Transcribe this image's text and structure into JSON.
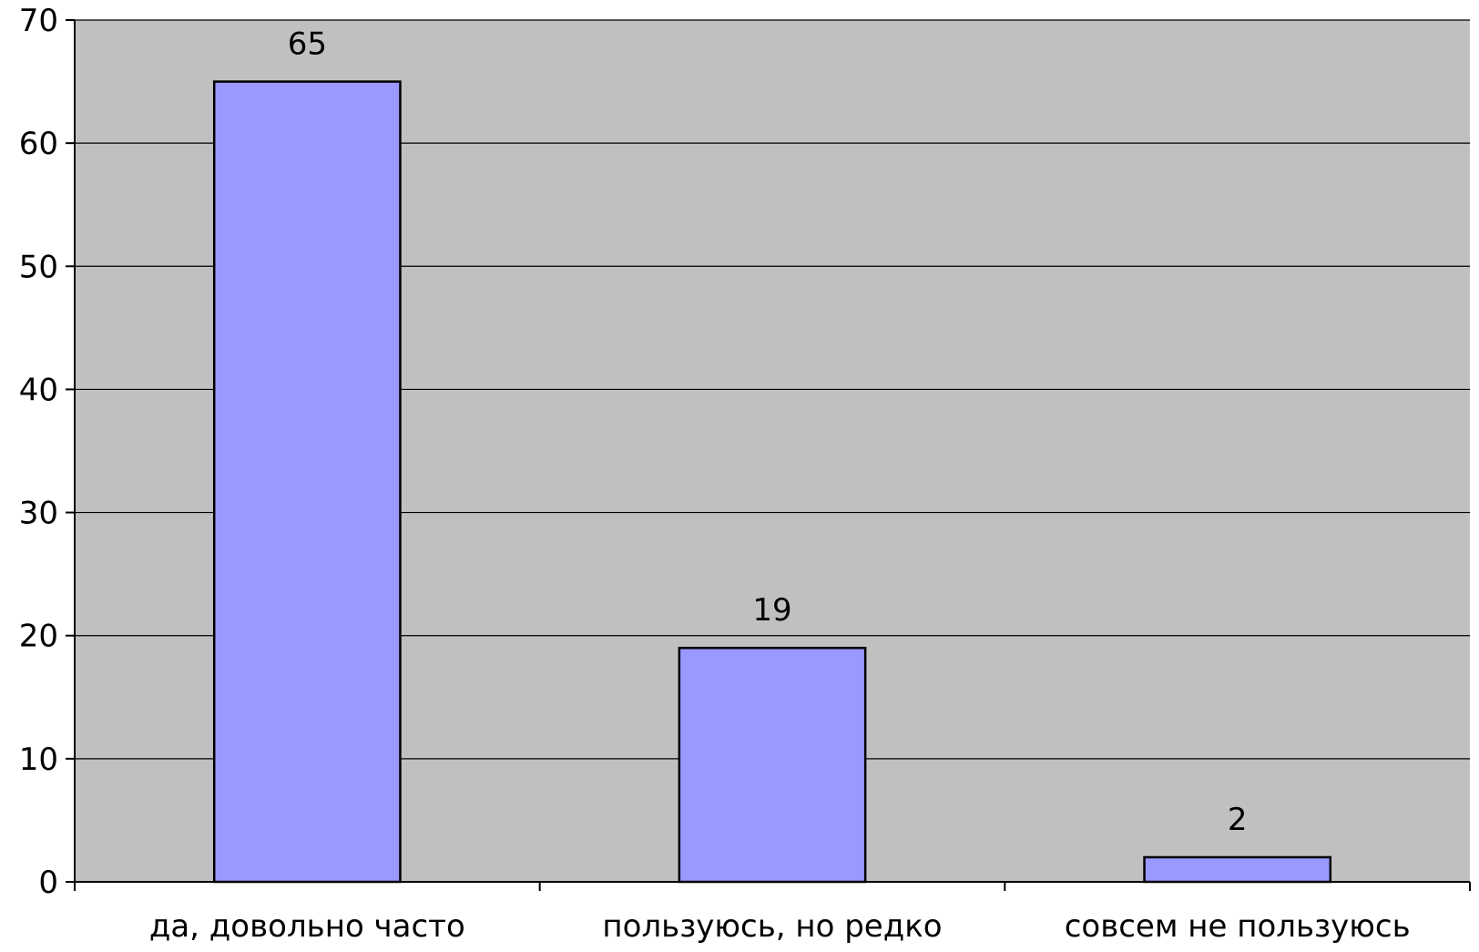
{
  "chart_data": {
    "type": "bar",
    "categories": [
      "да, довольно часто",
      "пользуюсь, но редко",
      "совсем не пользуюсь"
    ],
    "values": [
      65,
      19,
      2
    ],
    "ylim": [
      0,
      70
    ],
    "yticks": [
      0,
      10,
      20,
      30,
      40,
      50,
      60,
      70
    ],
    "grid": true,
    "data_labels": [
      "65",
      "19",
      "2"
    ],
    "colors": {
      "plot_background": "#c0c0c0",
      "bar_fill": "#9999ff",
      "bar_stroke": "#000000",
      "gridline": "#000000"
    }
  }
}
